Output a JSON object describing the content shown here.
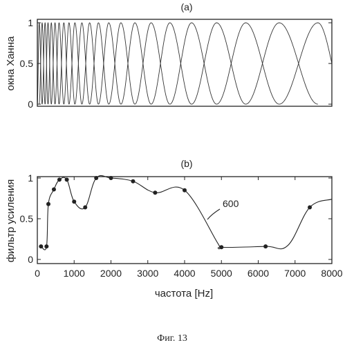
{
  "chart_data": [
    {
      "type": "line",
      "panel_label": "(a)",
      "ylabel": "окна Ханна",
      "ylim": [
        0,
        1
      ],
      "yticks": [
        "0",
        "0.5",
        "1"
      ],
      "grid": false,
      "series": [
        {
          "kind": "hann_window_bank",
          "centers": [
            50,
            130,
            210,
            290,
            380,
            480,
            590,
            720,
            860,
            1020,
            1210,
            1420,
            1660,
            1940,
            2270,
            2650,
            3090,
            3600,
            4190,
            4870,
            5660,
            6570,
            7620
          ]
        }
      ]
    },
    {
      "type": "line",
      "panel_label": "(b)",
      "xlabel": "частота [Hz]",
      "ylabel": "фильтр усиления",
      "xlim": [
        0,
        8000
      ],
      "ylim": [
        0,
        1
      ],
      "xticks": [
        "0",
        "1000",
        "2000",
        "3000",
        "4000",
        "5000",
        "6000",
        "7000",
        "8000"
      ],
      "yticks": [
        "0",
        "0.5",
        "1"
      ],
      "grid": false,
      "annotation": "600",
      "series": [
        {
          "x": [
            100,
            250,
            300,
            450,
            600,
            800,
            1000,
            1300,
            1600,
            2000,
            2600,
            3200,
            4000,
            4900,
            5000,
            6200,
            6800,
            7400,
            8000
          ],
          "y": [
            0.16,
            0.16,
            0.68,
            0.86,
            0.98,
            0.98,
            0.71,
            0.64,
            1.0,
            1.0,
            0.96,
            0.82,
            0.85,
            0.2,
            0.15,
            0.16,
            0.17,
            0.64,
            0.74
          ]
        }
      ],
      "markers": {
        "x": [
          100,
          250,
          300,
          450,
          600,
          800,
          1000,
          1300,
          1600,
          2000,
          2600,
          3200,
          4000,
          5000,
          6200,
          7400
        ],
        "y": [
          0.16,
          0.16,
          0.68,
          0.86,
          0.98,
          0.98,
          0.71,
          0.64,
          1.0,
          1.0,
          0.96,
          0.82,
          0.85,
          0.15,
          0.16,
          0.64
        ]
      }
    }
  ],
  "caption": "Фиг. 13"
}
